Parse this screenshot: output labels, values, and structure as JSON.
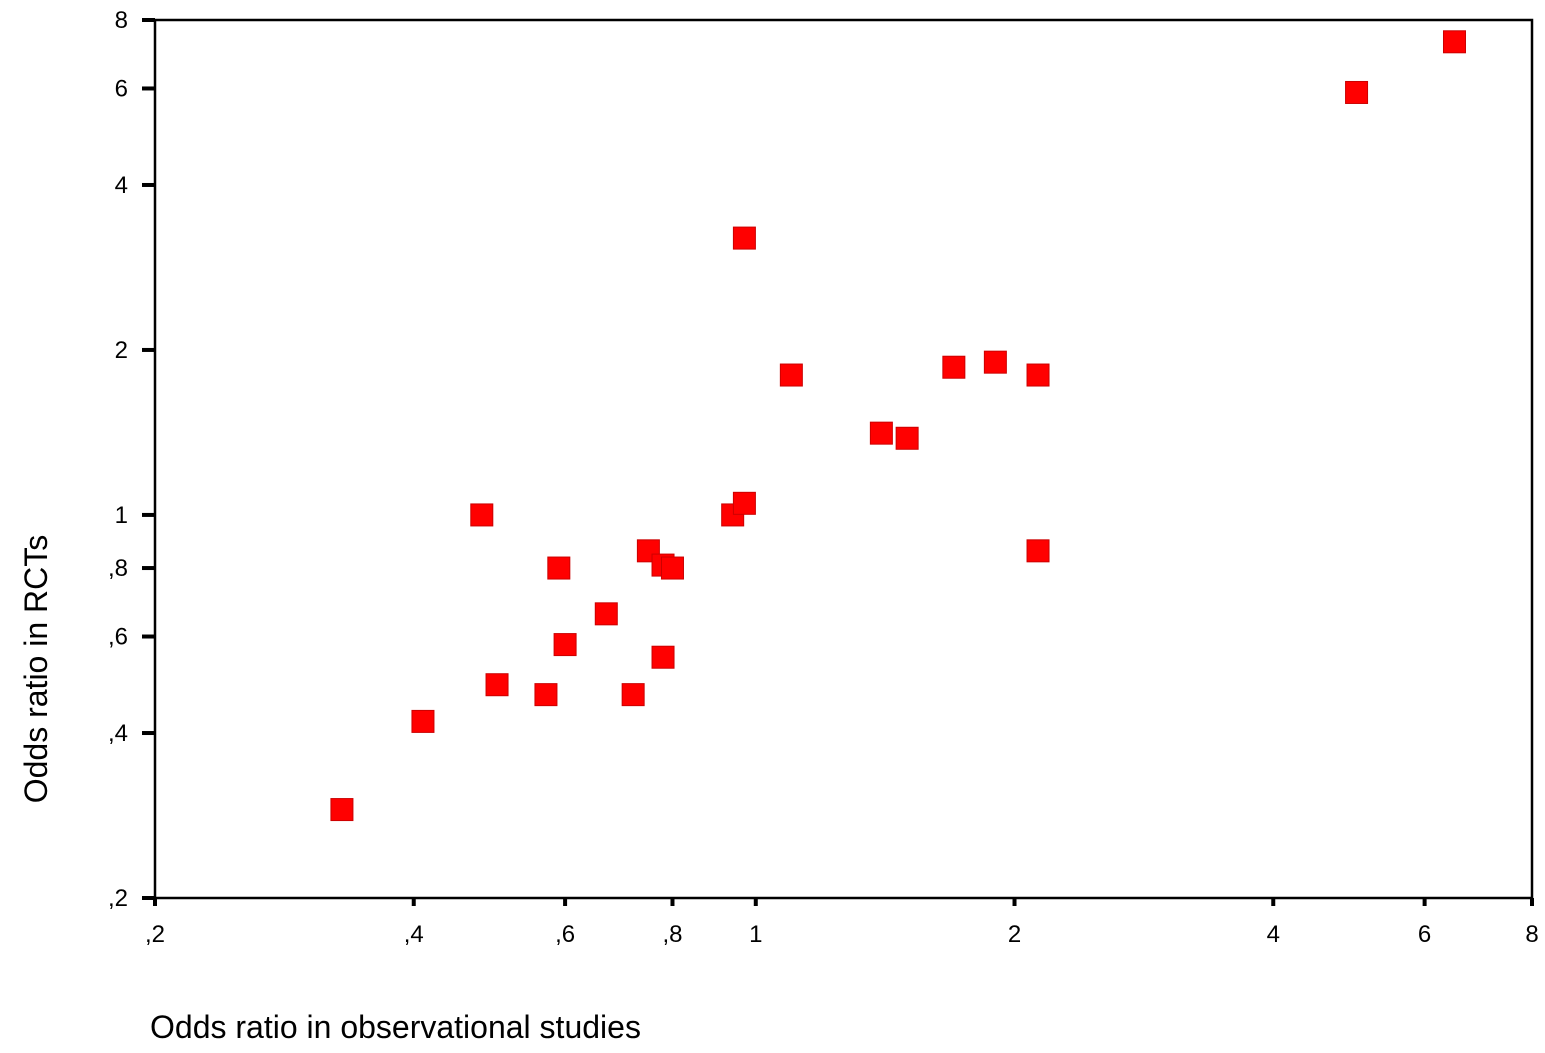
{
  "chart_data": {
    "type": "scatter",
    "title": "",
    "xlabel": "Odds ratio in observational studies",
    "ylabel": "Odds ratio in RCTs",
    "x_scale": "log",
    "y_scale": "log",
    "xlim": [
      0.2,
      8
    ],
    "ylim": [
      0.2,
      8
    ],
    "x_ticks": [
      {
        "value": 0.2,
        "label": ",2"
      },
      {
        "value": 0.4,
        "label": ",4"
      },
      {
        "value": 0.6,
        "label": ",6"
      },
      {
        "value": 0.8,
        "label": ",8"
      },
      {
        "value": 1,
        "label": "1"
      },
      {
        "value": 2,
        "label": "2"
      },
      {
        "value": 4,
        "label": "4"
      },
      {
        "value": 6,
        "label": "6"
      },
      {
        "value": 8,
        "label": "8"
      }
    ],
    "y_ticks": [
      {
        "value": 0.2,
        "label": ",2"
      },
      {
        "value": 0.4,
        "label": ",4"
      },
      {
        "value": 0.6,
        "label": ",6"
      },
      {
        "value": 0.8,
        "label": ",8"
      },
      {
        "value": 1,
        "label": "1"
      },
      {
        "value": 2,
        "label": "2"
      },
      {
        "value": 4,
        "label": "4"
      },
      {
        "value": 6,
        "label": "6"
      },
      {
        "value": 8,
        "label": "8"
      }
    ],
    "grid": false,
    "legend": "none",
    "marker": "square",
    "marker_color": "#ff0000",
    "marker_edge_color": "#cc0000",
    "points": [
      {
        "x": 0.33,
        "y": 0.29
      },
      {
        "x": 0.41,
        "y": 0.42
      },
      {
        "x": 0.48,
        "y": 1.0
      },
      {
        "x": 0.5,
        "y": 0.49
      },
      {
        "x": 0.57,
        "y": 0.47
      },
      {
        "x": 0.59,
        "y": 0.8
      },
      {
        "x": 0.6,
        "y": 0.58
      },
      {
        "x": 0.67,
        "y": 0.66
      },
      {
        "x": 0.72,
        "y": 0.47
      },
      {
        "x": 0.75,
        "y": 0.86
      },
      {
        "x": 0.78,
        "y": 0.81
      },
      {
        "x": 0.78,
        "y": 0.55
      },
      {
        "x": 0.8,
        "y": 0.8
      },
      {
        "x": 0.94,
        "y": 1.0
      },
      {
        "x": 0.97,
        "y": 1.05
      },
      {
        "x": 0.97,
        "y": 3.2
      },
      {
        "x": 1.1,
        "y": 1.8
      },
      {
        "x": 1.4,
        "y": 1.41
      },
      {
        "x": 1.5,
        "y": 1.38
      },
      {
        "x": 1.7,
        "y": 1.86
      },
      {
        "x": 1.9,
        "y": 1.9
      },
      {
        "x": 2.13,
        "y": 1.8
      },
      {
        "x": 2.13,
        "y": 0.86
      },
      {
        "x": 5.0,
        "y": 5.9
      },
      {
        "x": 6.5,
        "y": 7.3
      }
    ]
  }
}
